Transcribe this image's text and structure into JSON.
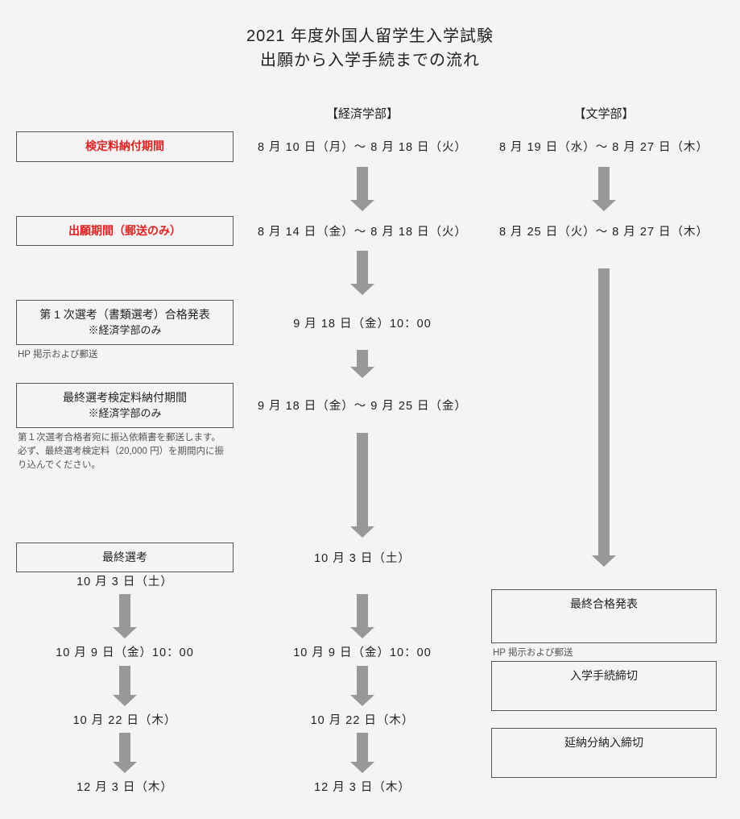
{
  "title_line1": "2021 年度外国人留学生入学試験",
  "title_line2": "出願から入学手続までの流れ",
  "colors": {
    "background": "#f5f3f4",
    "text": "#222222",
    "red": "#dd2222",
    "arrow": "#9a9897",
    "border": "#555555",
    "note": "#555555"
  },
  "columns": {
    "col1_header": "【経済学部】",
    "col2_header": "【文学部】"
  },
  "steps": [
    {
      "label": "検定料納付期間",
      "red": true,
      "col1": "8 月 10 日（月）～ 8 月 18 日（火）",
      "col2": "8 月 19 日（水）～ 8 月 27 日（木）",
      "arrow1_h": 55,
      "arrow2_h": 55
    },
    {
      "label": "出願期間（郵送のみ）",
      "red": true,
      "col1": "8 月 14 日（金）～ 8 月 18 日（火）",
      "col2": "8 月 25 日（火）～ 8 月 27 日（木）",
      "arrow1_h": 55
    },
    {
      "label_line1": "第 1 次選考（書類選考）合格発表",
      "label_line2": "※経済学部のみ",
      "note": "HP 掲示および郵送",
      "col1": "9 月 18 日（金）10：00",
      "arrow1_h": 35
    },
    {
      "label_line1": "最終選考検定料納付期間",
      "label_line2": "※経済学部のみ",
      "note": "第１次選考合格者宛に振込依頼書を郵送します。\n必ず、最終選考検定料（20,000 円）を期間内に振り込んでください。",
      "col1": "9 月 18 日（金）～ 9 月 25 日（金）",
      "arrow1_h": 130,
      "arrow2_long_h": 370
    },
    {
      "label": "最終選考",
      "col1": "10 月 3 日（土）",
      "col2": "10 月 3 日（土）",
      "arrow1_h": 55,
      "arrow2_h": 55
    },
    {
      "label": "最終合格発表",
      "note": "HP 掲示および郵送",
      "col1": "10 月 9 日（金）10：00",
      "col2": "10 月 9 日（金）10：00",
      "arrow1_h": 50,
      "arrow2_h": 50
    },
    {
      "label": "入学手続締切",
      "col1": "10 月 22 日（木）",
      "col2": "10 月 22 日（木）",
      "arrow1_h": 50,
      "arrow2_h": 50
    },
    {
      "label": "延納分納入締切",
      "col1": "12 月 3 日（木）",
      "col2": "12 月 3 日（木）"
    }
  ],
  "style": {
    "title_fontsize": 20,
    "date_fontsize": 14.5,
    "label_fontsize": 14,
    "note_fontsize": 11.5,
    "arrow_stem_width": 14,
    "arrow_head_width": 30,
    "arrow_head_height": 14
  }
}
